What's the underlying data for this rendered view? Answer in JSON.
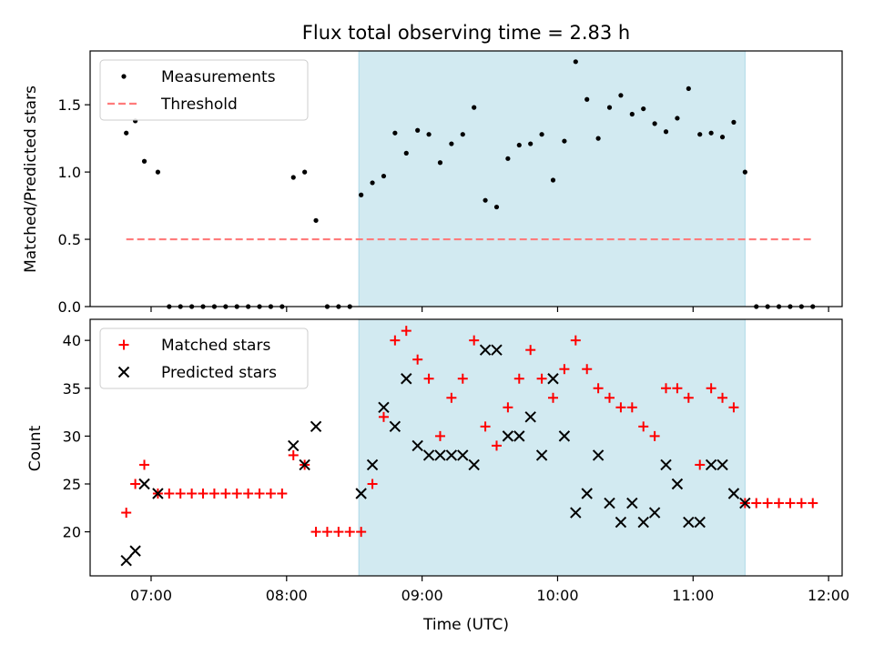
{
  "chart_data": [
    {
      "type": "scatter",
      "title": "Flux total observing time = 2.83 h",
      "xlabel": "",
      "ylabel": "Matched/Predicted stars",
      "xlim": [
        "06:33",
        "12:06"
      ],
      "ylim": [
        0,
        1.9
      ],
      "yticks": [
        0.0,
        0.5,
        1.0,
        1.5
      ],
      "ytick_labels": [
        "0.0",
        "0.5",
        "1.0",
        "1.5"
      ],
      "shaded_region": {
        "from": "08:32",
        "to": "11:23",
        "color": "#add8e6"
      },
      "legend": {
        "position": "top-left",
        "entries": [
          "Measurements",
          "Threshold"
        ]
      },
      "series": [
        {
          "name": "Measurements",
          "marker": "dot",
          "color": "#000000",
          "points": [
            [
              "06:49",
              1.29
            ],
            [
              "06:53",
              1.38
            ],
            [
              "06:57",
              1.08
            ],
            [
              "07:03",
              1.0
            ],
            [
              "07:08",
              0
            ],
            [
              "07:13",
              0
            ],
            [
              "07:18",
              0
            ],
            [
              "07:23",
              0
            ],
            [
              "07:28",
              0
            ],
            [
              "07:33",
              0
            ],
            [
              "07:38",
              0
            ],
            [
              "07:43",
              0
            ],
            [
              "07:48",
              0
            ],
            [
              "07:53",
              0
            ],
            [
              "07:58",
              0
            ],
            [
              "08:03",
              0.96
            ],
            [
              "08:08",
              1.0
            ],
            [
              "08:13",
              0.64
            ],
            [
              "08:18",
              0
            ],
            [
              "08:23",
              0
            ],
            [
              "08:28",
              0
            ],
            [
              "08:33",
              0.83
            ],
            [
              "08:38",
              0.92
            ],
            [
              "08:43",
              0.97
            ],
            [
              "08:48",
              1.29
            ],
            [
              "08:53",
              1.14
            ],
            [
              "08:58",
              1.31
            ],
            [
              "09:03",
              1.28
            ],
            [
              "09:08",
              1.07
            ],
            [
              "09:13",
              1.21
            ],
            [
              "09:18",
              1.28
            ],
            [
              "09:23",
              1.48
            ],
            [
              "09:28",
              0.79
            ],
            [
              "09:33",
              0.74
            ],
            [
              "09:38",
              1.1
            ],
            [
              "09:43",
              1.2
            ],
            [
              "09:48",
              1.21
            ],
            [
              "09:53",
              1.28
            ],
            [
              "09:58",
              0.94
            ],
            [
              "10:03",
              1.23
            ],
            [
              "10:08",
              1.82
            ],
            [
              "10:13",
              1.54
            ],
            [
              "10:18",
              1.25
            ],
            [
              "10:23",
              1.48
            ],
            [
              "10:28",
              1.57
            ],
            [
              "10:33",
              1.43
            ],
            [
              "10:38",
              1.47
            ],
            [
              "10:43",
              1.36
            ],
            [
              "10:48",
              1.3
            ],
            [
              "10:53",
              1.4
            ],
            [
              "10:58",
              1.62
            ],
            [
              "11:03",
              1.28
            ],
            [
              "11:08",
              1.29
            ],
            [
              "11:13",
              1.26
            ],
            [
              "11:18",
              1.37
            ],
            [
              "11:23",
              1.0
            ],
            [
              "11:28",
              0
            ],
            [
              "11:33",
              0
            ],
            [
              "11:38",
              0
            ],
            [
              "11:43",
              0
            ],
            [
              "11:48",
              0
            ],
            [
              "11:53",
              0
            ]
          ]
        },
        {
          "name": "Threshold",
          "marker": "dashed-line",
          "color": "#ff7b7b",
          "points": [
            [
              "06:49",
              0.5
            ],
            [
              "11:53",
              0.5
            ]
          ]
        }
      ]
    },
    {
      "type": "scatter",
      "title": "",
      "xlabel": "Time (UTC)",
      "ylabel": "Count",
      "xlim": [
        "06:33",
        "12:06"
      ],
      "ylim": [
        15.4,
        42.2
      ],
      "yticks": [
        20,
        25,
        30,
        35,
        40
      ],
      "ytick_labels": [
        "20",
        "25",
        "30",
        "35",
        "40"
      ],
      "xticks": [
        "07:00",
        "08:00",
        "09:00",
        "10:00",
        "11:00",
        "12:00"
      ],
      "xtick_labels": [
        "07:00",
        "08:00",
        "09:00",
        "10:00",
        "11:00",
        "12:00"
      ],
      "shaded_region": {
        "from": "08:32",
        "to": "11:23",
        "color": "#add8e6"
      },
      "legend": {
        "position": "top-left",
        "entries": [
          "Matched stars",
          "Predicted stars"
        ]
      },
      "series": [
        {
          "name": "Matched stars",
          "marker": "plus",
          "color": "#ff0000",
          "points": [
            [
              "06:49",
              22
            ],
            [
              "06:53",
              25
            ],
            [
              "06:57",
              27
            ],
            [
              "07:03",
              24
            ],
            [
              "07:08",
              24
            ],
            [
              "07:13",
              24
            ],
            [
              "07:18",
              24
            ],
            [
              "07:23",
              24
            ],
            [
              "07:28",
              24
            ],
            [
              "07:33",
              24
            ],
            [
              "07:38",
              24
            ],
            [
              "07:43",
              24
            ],
            [
              "07:48",
              24
            ],
            [
              "07:53",
              24
            ],
            [
              "07:58",
              24
            ],
            [
              "08:03",
              28
            ],
            [
              "08:08",
              27
            ],
            [
              "08:13",
              20
            ],
            [
              "08:18",
              20
            ],
            [
              "08:23",
              20
            ],
            [
              "08:28",
              20
            ],
            [
              "08:33",
              20
            ],
            [
              "08:38",
              25
            ],
            [
              "08:43",
              32
            ],
            [
              "08:48",
              40
            ],
            [
              "08:53",
              41
            ],
            [
              "08:58",
              38
            ],
            [
              "09:03",
              36
            ],
            [
              "09:08",
              30
            ],
            [
              "09:13",
              34
            ],
            [
              "09:18",
              36
            ],
            [
              "09:23",
              40
            ],
            [
              "09:28",
              31
            ],
            [
              "09:33",
              29
            ],
            [
              "09:38",
              33
            ],
            [
              "09:43",
              36
            ],
            [
              "09:48",
              39
            ],
            [
              "09:53",
              36
            ],
            [
              "09:58",
              34
            ],
            [
              "10:03",
              37
            ],
            [
              "10:08",
              40
            ],
            [
              "10:13",
              37
            ],
            [
              "10:18",
              35
            ],
            [
              "10:23",
              34
            ],
            [
              "10:28",
              33
            ],
            [
              "10:33",
              33
            ],
            [
              "10:38",
              31
            ],
            [
              "10:43",
              30
            ],
            [
              "10:48",
              35
            ],
            [
              "10:53",
              35
            ],
            [
              "10:58",
              34
            ],
            [
              "11:03",
              27
            ],
            [
              "11:08",
              35
            ],
            [
              "11:13",
              34
            ],
            [
              "11:18",
              33
            ],
            [
              "11:23",
              23
            ],
            [
              "11:28",
              23
            ],
            [
              "11:33",
              23
            ],
            [
              "11:38",
              23
            ],
            [
              "11:43",
              23
            ],
            [
              "11:48",
              23
            ],
            [
              "11:53",
              23
            ]
          ]
        },
        {
          "name": "Predicted stars",
          "marker": "x",
          "color": "#000000",
          "points": [
            [
              "06:49",
              17
            ],
            [
              "06:53",
              18
            ],
            [
              "06:57",
              25
            ],
            [
              "07:03",
              24
            ],
            [
              "08:03",
              29
            ],
            [
              "08:08",
              27
            ],
            [
              "08:13",
              31
            ],
            [
              "08:33",
              24
            ],
            [
              "08:38",
              27
            ],
            [
              "08:43",
              33
            ],
            [
              "08:48",
              31
            ],
            [
              "08:53",
              36
            ],
            [
              "08:58",
              29
            ],
            [
              "09:03",
              28
            ],
            [
              "09:08",
              28
            ],
            [
              "09:13",
              28
            ],
            [
              "09:18",
              28
            ],
            [
              "09:23",
              27
            ],
            [
              "09:28",
              39
            ],
            [
              "09:33",
              39
            ],
            [
              "09:38",
              30
            ],
            [
              "09:43",
              30
            ],
            [
              "09:48",
              32
            ],
            [
              "09:53",
              28
            ],
            [
              "09:58",
              36
            ],
            [
              "10:03",
              30
            ],
            [
              "10:08",
              22
            ],
            [
              "10:13",
              24
            ],
            [
              "10:18",
              28
            ],
            [
              "10:23",
              23
            ],
            [
              "10:28",
              21
            ],
            [
              "10:33",
              23
            ],
            [
              "10:38",
              21
            ],
            [
              "10:43",
              22
            ],
            [
              "10:48",
              27
            ],
            [
              "10:53",
              25
            ],
            [
              "10:58",
              21
            ],
            [
              "11:03",
              21
            ],
            [
              "11:08",
              27
            ],
            [
              "11:13",
              27
            ],
            [
              "11:18",
              24
            ],
            [
              "11:23",
              23
            ]
          ]
        }
      ]
    }
  ]
}
